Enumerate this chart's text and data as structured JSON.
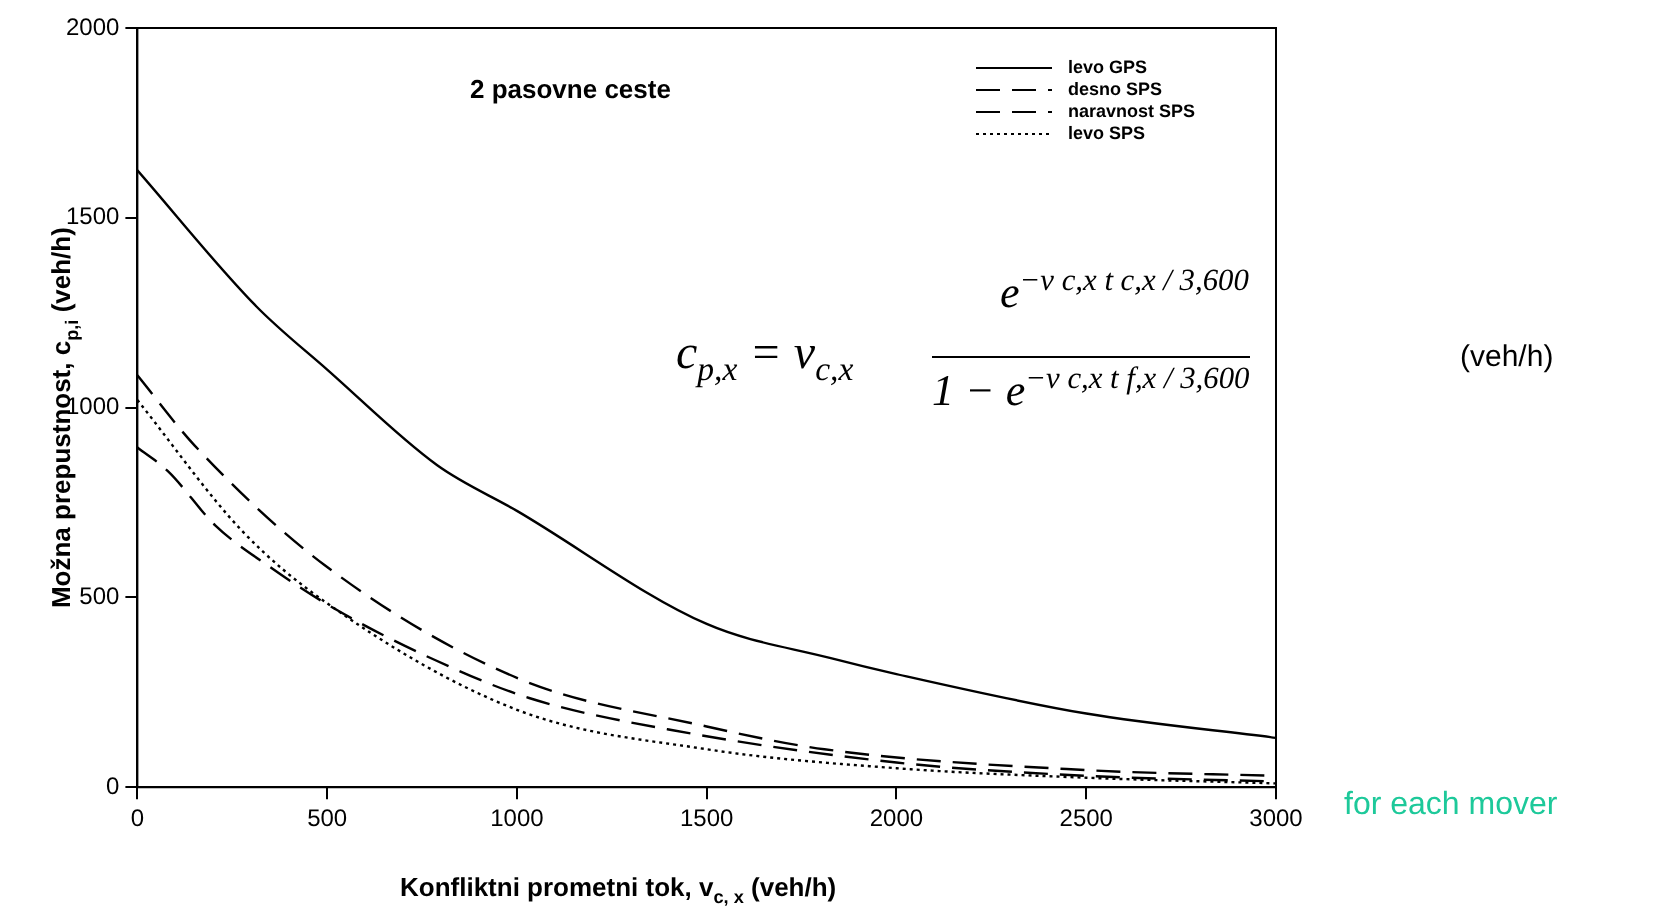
{
  "chart_data": {
    "type": "line",
    "title": "2 pasovne ceste",
    "xlabel": "Konfliktni prometni tok,  v$_{c, x}$ (veh/h)",
    "ylabel": "Možna prepustnost,  c$_{p,i}$ (veh/h)",
    "xlim": [
      0,
      3000
    ],
    "xticks": [
      0,
      500,
      1000,
      1500,
      2000,
      2500,
      3000
    ],
    "ylim": [
      0,
      2000
    ],
    "yticks": [
      0,
      500,
      1000,
      1500,
      2000
    ],
    "grid": false,
    "legend": "top right",
    "marker": "none",
    "series": [
      {
        "name": "levo GPS",
        "color": "#000000",
        "line_style": "solid",
        "x": [
          0,
          313,
          500,
          790,
          1000,
          1500,
          1827,
          2000,
          2500,
          3000
        ],
        "values": [
          1625,
          1267,
          1100,
          848,
          728,
          430,
          340,
          298,
          194,
          130
        ]
      },
      {
        "name": "desno SPS",
        "color": "#000000",
        "line_style": "dashed",
        "x": [
          0,
          151,
          492,
          1000,
          1500,
          1810,
          2500,
          3000
        ],
        "values": [
          1085,
          900,
          586,
          288,
          160,
          100,
          45,
          30
        ]
      },
      {
        "name": "naravnost SPS",
        "color": "#000000",
        "line_style": "dashed",
        "x": [
          0,
          81,
          205,
          357,
          520,
          784,
          1032,
          1411,
          2000,
          2500,
          3000
        ],
        "values": [
          895,
          832,
          690,
          575,
          470,
          335,
          235,
          150,
          65,
          30,
          15
        ]
      },
      {
        "name": "levo SPS",
        "color": "#000000",
        "line_style": "dotted",
        "x": [
          0,
          276,
          492,
          1000,
          1500,
          2000,
          2500,
          3000
        ],
        "values": [
          1020,
          675,
          490,
          204,
          100,
          50,
          25,
          10
        ]
      }
    ],
    "annotations": [
      "c$_{p,x}$ = v$_{c,x}$",
      "e$^{−v c,x t c,x / 3,600}$",
      "1 − e$^{−v c,x t f,x / 3,600}$",
      "(veh/h)",
      "for each mover"
    ]
  }
}
